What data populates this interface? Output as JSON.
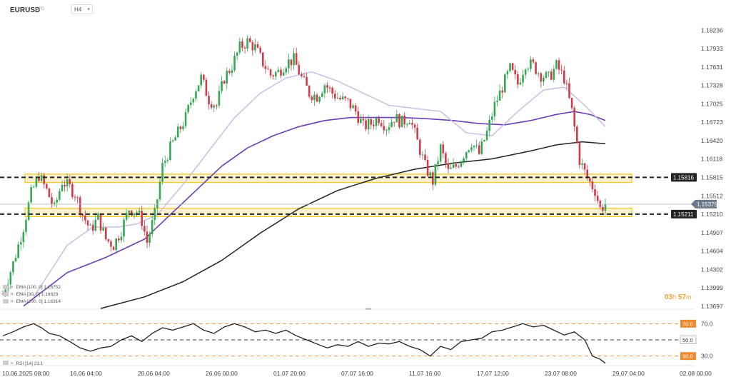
{
  "header": {
    "symbol": "EURUSD",
    "symbol_type": "CFD",
    "timeframe": "H4"
  },
  "legend": {
    "ema100": "EMA [100, 0] 1.16752",
    "ema30": "EMA [30, 0] 1.16628",
    "ema200": "EMA [200, 0] 1.16314",
    "rsi": "RSI [14] 21.1"
  },
  "countdown": {
    "hours": "03",
    "h_unit": "h",
    "minutes": "57",
    "m_unit": "m"
  },
  "colors": {
    "up": "#34a853",
    "down": "#d03a4a",
    "ema30": "#c9b8e8",
    "ema100": "#6b3fb8",
    "ema200": "#222222",
    "zone_fill": "#fbf1cf",
    "zone_border": "#f2c200",
    "rsi_line": "#222222",
    "rsi_level": "#f08a30",
    "price_badge": "#6c7a89",
    "level_badge": "#222222"
  },
  "chart_data": [
    {
      "type": "candlestick",
      "title": "EURUSD CFD H4",
      "x_ticks": [
        "10.06.2025 08:00",
        "16.06 04:00",
        "20.06 04:00",
        "26.06 00:00",
        "01.07 20:00",
        "07.07 16:00",
        "11.07 16:00",
        "17.07 12:00",
        "23.07 08:00",
        "29.07 04:00",
        "02.08 00:00"
      ],
      "y_ticks": [
        1.18236,
        1.17933,
        1.17631,
        1.17328,
        1.17025,
        1.16723,
        1.1642,
        1.16118,
        1.15815,
        1.15512,
        1.1521,
        1.14907,
        1.14604,
        1.14302,
        1.13999,
        1.13697
      ],
      "ylim": [
        1.1366,
        1.1838
      ],
      "last_price": "1.15375",
      "levels": [
        {
          "value": 1.15816,
          "label": "1.15816",
          "style": "dashed"
        },
        {
          "value": 1.15211,
          "label": "1.15211",
          "style": "dashed"
        }
      ],
      "zones": [
        [
          1.1573,
          1.1587
        ],
        [
          1.1517,
          1.1531
        ]
      ],
      "indicators": [
        {
          "name": "EMA 30",
          "last": 1.16628
        },
        {
          "name": "EMA 100",
          "last": 1.16752
        },
        {
          "name": "EMA 200",
          "last": 1.16314
        }
      ],
      "close_path": [
        [
          0,
          1.139
        ],
        [
          4,
          1.144
        ],
        [
          8,
          1.15
        ],
        [
          11,
          1.1555
        ],
        [
          14,
          1.1585
        ],
        [
          17,
          1.156
        ],
        [
          20,
          1.153
        ],
        [
          23,
          1.1575
        ],
        [
          26,
          1.1565
        ],
        [
          28,
          1.1555
        ],
        [
          31,
          1.152
        ],
        [
          34,
          1.1495
        ],
        [
          37,
          1.1515
        ],
        [
          40,
          1.148
        ],
        [
          43,
          1.147
        ],
        [
          46,
          1.1495
        ],
        [
          49,
          1.153
        ],
        [
          52,
          1.1525
        ],
        [
          54,
          1.151
        ],
        [
          56,
          1.1475
        ],
        [
          59,
          1.152
        ],
        [
          62,
          1.16
        ],
        [
          65,
          1.163
        ],
        [
          68,
          1.1655
        ],
        [
          71,
          1.168
        ],
        [
          74,
          1.172
        ],
        [
          77,
          1.1745
        ],
        [
          80,
          1.171
        ],
        [
          83,
          1.17
        ],
        [
          86,
          1.1745
        ],
        [
          89,
          1.1765
        ],
        [
          92,
          1.1795
        ],
        [
          95,
          1.1805
        ],
        [
          98,
          1.1795
        ],
        [
          101,
          1.177
        ],
        [
          104,
          1.175
        ],
        [
          107,
          1.1755
        ],
        [
          110,
          1.177
        ],
        [
          113,
          1.1775
        ],
        [
          116,
          1.1745
        ],
        [
          119,
          1.172
        ],
        [
          122,
          1.1715
        ],
        [
          125,
          1.1735
        ],
        [
          128,
          1.172
        ],
        [
          131,
          1.171
        ],
        [
          134,
          1.1705
        ],
        [
          137,
          1.169
        ],
        [
          140,
          1.1665
        ],
        [
          143,
          1.167
        ],
        [
          146,
          1.168
        ],
        [
          149,
          1.1665
        ],
        [
          152,
          1.168
        ],
        [
          155,
          1.1672
        ],
        [
          158,
          1.168
        ],
        [
          161,
          1.164
        ],
        [
          164,
          1.16
        ],
        [
          167,
          1.1575
        ],
        [
          170,
          1.163
        ],
        [
          173,
          1.159
        ],
        [
          176,
          1.16
        ],
        [
          179,
          1.162
        ],
        [
          182,
          1.164
        ],
        [
          185,
          1.162
        ],
        [
          188,
          1.1655
        ],
        [
          191,
          1.17
        ],
        [
          194,
          1.173
        ],
        [
          197,
          1.176
        ],
        [
          200,
          1.1735
        ],
        [
          203,
          1.177
        ],
        [
          206,
          1.1765
        ],
        [
          209,
          1.175
        ],
        [
          212,
          1.1745
        ],
        [
          215,
          1.1765
        ],
        [
          218,
          1.1745
        ],
        [
          221,
          1.169
        ],
        [
          224,
          1.161
        ],
        [
          227,
          1.158
        ],
        [
          230,
          1.156
        ],
        [
          232,
          1.153
        ],
        [
          234,
          1.15375
        ]
      ],
      "ema30_path": [
        [
          12,
          1.1385
        ],
        [
          25,
          1.147
        ],
        [
          35,
          1.15
        ],
        [
          45,
          1.15
        ],
        [
          52,
          1.1505
        ],
        [
          60,
          1.152
        ],
        [
          70,
          1.157
        ],
        [
          80,
          1.1625
        ],
        [
          90,
          1.168
        ],
        [
          100,
          1.172
        ],
        [
          110,
          1.1745
        ],
        [
          120,
          1.1755
        ],
        [
          130,
          1.174
        ],
        [
          140,
          1.172
        ],
        [
          150,
          1.17
        ],
        [
          160,
          1.1695
        ],
        [
          170,
          1.169
        ],
        [
          180,
          1.1655
        ],
        [
          190,
          1.165
        ],
        [
          200,
          1.169
        ],
        [
          210,
          1.1725
        ],
        [
          218,
          1.173
        ],
        [
          226,
          1.17
        ],
        [
          234,
          1.1665
        ]
      ],
      "ema100_path": [
        [
          8,
          1.137
        ],
        [
          25,
          1.1425
        ],
        [
          40,
          1.145
        ],
        [
          55,
          1.148
        ],
        [
          65,
          1.152
        ],
        [
          75,
          1.156
        ],
        [
          85,
          1.16
        ],
        [
          95,
          1.163
        ],
        [
          105,
          1.165
        ],
        [
          115,
          1.1665
        ],
        [
          125,
          1.1675
        ],
        [
          135,
          1.168
        ],
        [
          145,
          1.168
        ],
        [
          155,
          1.168
        ],
        [
          165,
          1.1678
        ],
        [
          175,
          1.1675
        ],
        [
          185,
          1.167
        ],
        [
          195,
          1.1668
        ],
        [
          205,
          1.1675
        ],
        [
          215,
          1.1685
        ],
        [
          222,
          1.169
        ],
        [
          228,
          1.1685
        ],
        [
          234,
          1.1675
        ]
      ],
      "ema200_path": [
        [
          38,
          1.1366
        ],
        [
          55,
          1.1385
        ],
        [
          70,
          1.141
        ],
        [
          85,
          1.1445
        ],
        [
          100,
          1.149
        ],
        [
          115,
          1.153
        ],
        [
          130,
          1.156
        ],
        [
          145,
          1.158
        ],
        [
          160,
          1.1595
        ],
        [
          175,
          1.1605
        ],
        [
          190,
          1.1612
        ],
        [
          205,
          1.1625
        ],
        [
          215,
          1.1635
        ],
        [
          225,
          1.164
        ],
        [
          234,
          1.1637
        ]
      ]
    },
    {
      "type": "line",
      "title": "RSI [14]",
      "x_ticks": [
        "10.06.2025 08:00",
        "16.06 04:00",
        "20.06 04:00",
        "26.06 00:00",
        "01.07 20:00",
        "07.07 16:00",
        "11.07 16:00",
        "17.07 12:00",
        "23.07 08:00",
        "29.07 04:00",
        "02.08 00:00"
      ],
      "y_ticks": [
        70.0,
        30.0
      ],
      "ylim": [
        20,
        80
      ],
      "levels": [
        {
          "value": 70.0,
          "label": "70.0"
        },
        {
          "value": 50.0,
          "label": "50.0"
        },
        {
          "value": 30.0,
          "label": "30.0"
        }
      ],
      "last_value": 21.1,
      "series": [
        {
          "name": "RSI [14]",
          "values": [
            [
              0,
              55
            ],
            [
              4,
              60
            ],
            [
              8,
              66
            ],
            [
              12,
              70
            ],
            [
              15,
              65
            ],
            [
              18,
              58
            ],
            [
              22,
              55
            ],
            [
              26,
              48
            ],
            [
              30,
              40
            ],
            [
              34,
              36
            ],
            [
              38,
              40
            ],
            [
              42,
              42
            ],
            [
              46,
              50
            ],
            [
              50,
              55
            ],
            [
              54,
              48
            ],
            [
              58,
              58
            ],
            [
              62,
              65
            ],
            [
              66,
              62
            ],
            [
              70,
              66
            ],
            [
              74,
              70
            ],
            [
              78,
              62
            ],
            [
              82,
              58
            ],
            [
              86,
              66
            ],
            [
              90,
              70
            ],
            [
              94,
              66
            ],
            [
              98,
              60
            ],
            [
              102,
              62
            ],
            [
              106,
              58
            ],
            [
              110,
              62
            ],
            [
              114,
              55
            ],
            [
              118,
              50
            ],
            [
              122,
              45
            ],
            [
              126,
              40
            ],
            [
              130,
              44
            ],
            [
              134,
              42
            ],
            [
              138,
              48
            ],
            [
              142,
              42
            ],
            [
              146,
              46
            ],
            [
              150,
              45
            ],
            [
              154,
              48
            ],
            [
              158,
              42
            ],
            [
              162,
              38
            ],
            [
              166,
              30
            ],
            [
              170,
              42
            ],
            [
              174,
              38
            ],
            [
              178,
              48
            ],
            [
              182,
              50
            ],
            [
              186,
              52
            ],
            [
              190,
              60
            ],
            [
              194,
              62
            ],
            [
              198,
              66
            ],
            [
              202,
              70
            ],
            [
              206,
              66
            ],
            [
              210,
              68
            ],
            [
              214,
              62
            ],
            [
              218,
              56
            ],
            [
              222,
              60
            ],
            [
              226,
              50
            ],
            [
              229,
              30
            ],
            [
              232,
              26
            ],
            [
              234,
              21.1
            ]
          ]
        }
      ]
    }
  ]
}
